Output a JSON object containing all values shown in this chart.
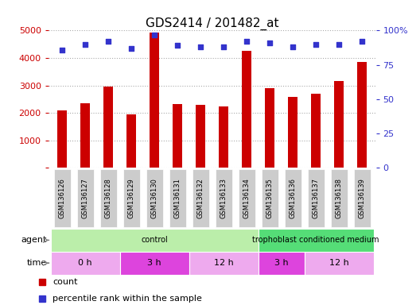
{
  "title": "GDS2414 / 201482_at",
  "samples": [
    "GSM136126",
    "GSM136127",
    "GSM136128",
    "GSM136129",
    "GSM136130",
    "GSM136131",
    "GSM136132",
    "GSM136133",
    "GSM136134",
    "GSM136135",
    "GSM136136",
    "GSM136137",
    "GSM136138",
    "GSM136139"
  ],
  "counts": [
    2100,
    2360,
    2960,
    1950,
    4920,
    2330,
    2290,
    2230,
    4270,
    2890,
    2580,
    2700,
    3150,
    3840
  ],
  "percentiles": [
    86,
    90,
    92,
    87,
    97,
    89,
    88,
    88,
    92,
    91,
    88,
    90,
    90,
    92
  ],
  "bar_color": "#cc0000",
  "dot_color": "#3333cc",
  "ylim_left": [
    0,
    5000
  ],
  "ylim_right": [
    0,
    100
  ],
  "yticks_left": [
    0,
    1000,
    2000,
    3000,
    4000,
    5000
  ],
  "ytick_labels_left": [
    "",
    "1000",
    "2000",
    "3000",
    "4000",
    "5000"
  ],
  "yticks_right": [
    0,
    25,
    50,
    75,
    100
  ],
  "ytick_labels_right": [
    "0",
    "25",
    "50",
    "75",
    "100%"
  ],
  "grid_color": "#aaaaaa",
  "bg_color": "#ffffff",
  "label_color_left": "#cc0000",
  "label_color_right": "#3333cc",
  "title_fontsize": 11,
  "tick_fontsize": 8,
  "bar_width": 0.4,
  "agent_blocks": [
    {
      "label": "control",
      "start": 0,
      "end": 9,
      "facecolor": "#bbeeaa"
    },
    {
      "label": "trophoblast conditioned medium",
      "start": 9,
      "end": 14,
      "facecolor": "#55dd77"
    }
  ],
  "time_blocks": [
    {
      "label": "0 h",
      "start": 0,
      "end": 3,
      "facecolor": "#eeaaee"
    },
    {
      "label": "3 h",
      "start": 3,
      "end": 6,
      "facecolor": "#dd44dd"
    },
    {
      "label": "12 h",
      "start": 6,
      "end": 9,
      "facecolor": "#eeaaee"
    },
    {
      "label": "3 h",
      "start": 9,
      "end": 11,
      "facecolor": "#dd44dd"
    },
    {
      "label": "12 h",
      "start": 11,
      "end": 14,
      "facecolor": "#eeaaee"
    }
  ],
  "xtick_bg": "#cccccc",
  "legend_count_color": "#cc0000",
  "legend_pct_color": "#3333cc"
}
